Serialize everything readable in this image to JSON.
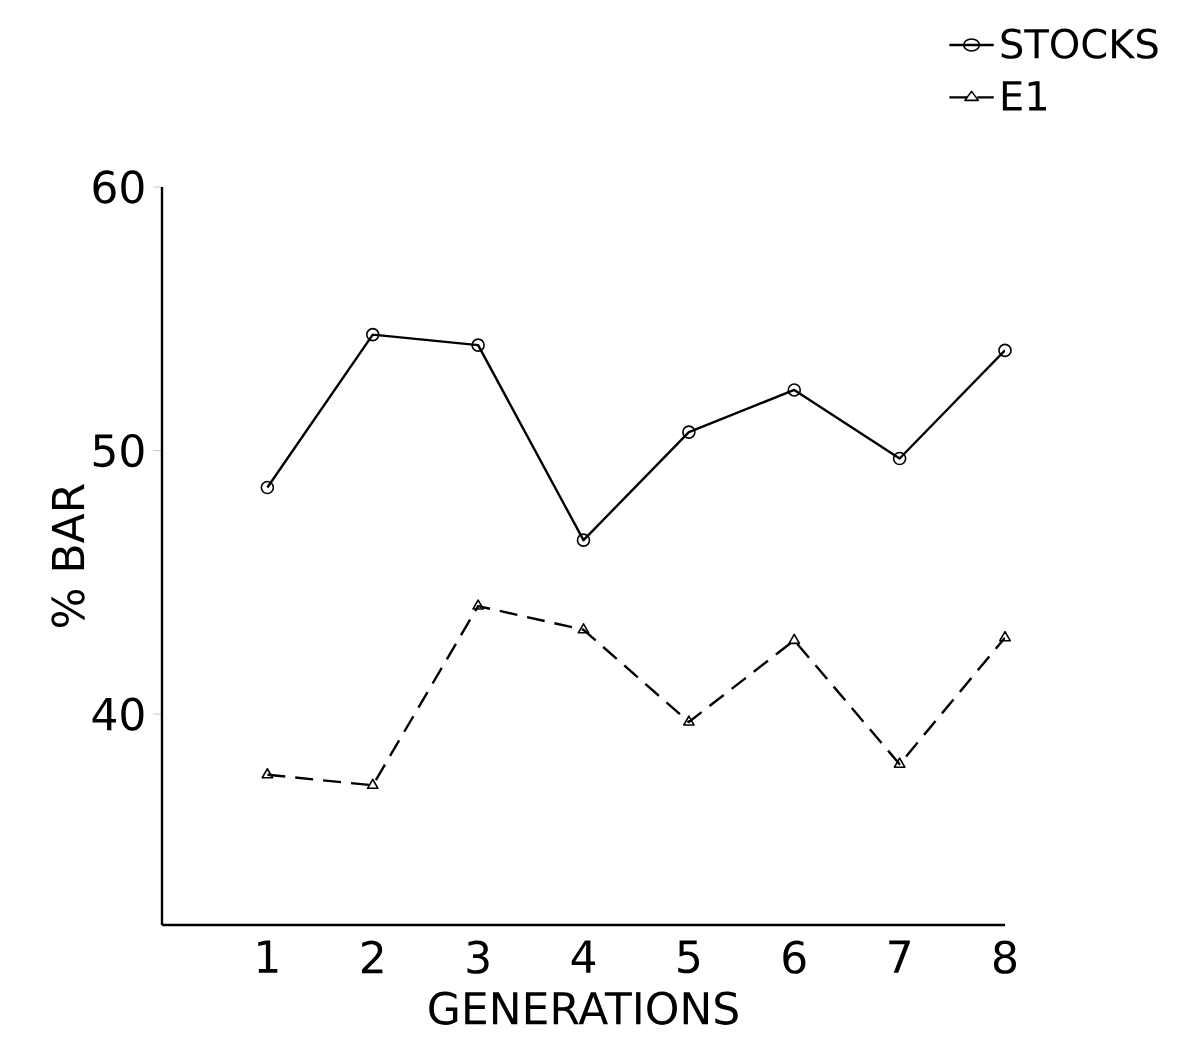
{
  "chart_data": {
    "type": "line",
    "xlabel": "GENERATIONS",
    "ylabel": "% BAR",
    "x": [
      1,
      2,
      3,
      4,
      5,
      6,
      7,
      8
    ],
    "series": [
      {
        "name": "STOCKS",
        "color": "#000000",
        "marker": "circle",
        "line_style": "solid",
        "values": [
          48.6,
          54.4,
          54.0,
          46.6,
          50.7,
          52.3,
          49.7,
          53.8
        ]
      },
      {
        "name": "E1",
        "color": "#000000",
        "marker": "triangle",
        "line_style": "dashed",
        "values": [
          37.7,
          37.3,
          44.1,
          43.2,
          39.7,
          42.8,
          38.1,
          42.9
        ]
      }
    ],
    "xlim": [
      0,
      8
    ],
    "xticks": [
      1,
      2,
      3,
      4,
      5,
      6,
      7,
      8
    ],
    "ylim": [
      32,
      60
    ],
    "yticks": [
      40,
      50,
      60
    ],
    "grid": false,
    "legend": "top right"
  }
}
